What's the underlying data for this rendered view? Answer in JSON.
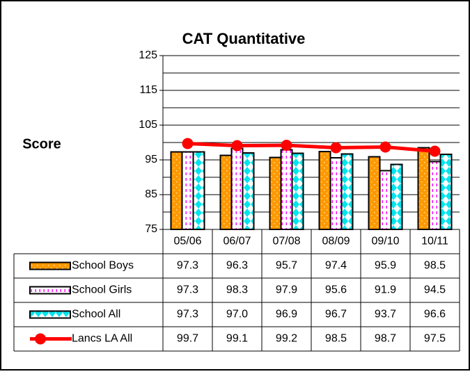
{
  "chart_data": {
    "type": "bar",
    "title": "CAT Quantitative",
    "y_label": "Score",
    "categories": [
      "05/06",
      "06/07",
      "07/08",
      "08/09",
      "09/10",
      "10/11"
    ],
    "series": [
      {
        "name": "School Boys",
        "color": "#ff9900",
        "type": "bar",
        "values": [
          97.3,
          96.3,
          95.7,
          97.4,
          95.9,
          98.5
        ]
      },
      {
        "name": "School Girls",
        "color": "#ff00ff",
        "type": "bar",
        "values": [
          97.3,
          98.3,
          97.9,
          95.6,
          91.9,
          94.5
        ]
      },
      {
        "name": "School All",
        "color": "#00ffff",
        "type": "bar",
        "values": [
          97.3,
          97.0,
          96.9,
          96.7,
          93.7,
          96.6
        ],
        "value_labels": [
          "97.3",
          "97.0",
          "96.9",
          "96.7",
          "93.7",
          "96.6"
        ]
      },
      {
        "name": "Lancs LA All",
        "color": "#ff0000",
        "type": "line",
        "values": [
          99.7,
          99.1,
          99.2,
          98.5,
          98.7,
          97.5
        ]
      }
    ],
    "ylim": [
      75,
      125
    ],
    "yticks": [
      75,
      85,
      95,
      105,
      115,
      125
    ],
    "minor_yticks": [
      80,
      90,
      100,
      110,
      120
    ],
    "grid": true
  }
}
